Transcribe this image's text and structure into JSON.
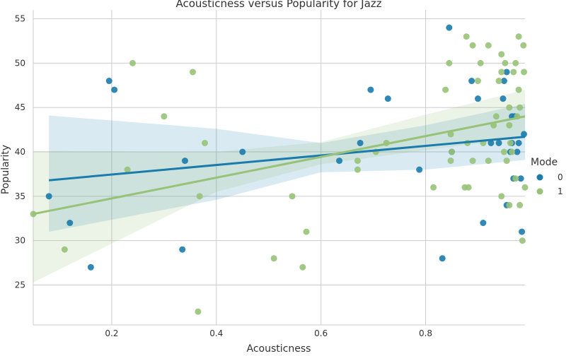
{
  "chart_data": {
    "type": "scatter",
    "title": "Acousticness versus Popularity for Jazz",
    "xlabel": "Acousticness",
    "ylabel": "Popularity",
    "xlim": [
      0.05,
      0.99
    ],
    "ylim": [
      20.5,
      56
    ],
    "xticks": [
      0.2,
      0.4,
      0.6,
      0.8
    ],
    "xtick_labels": [
      "0.2",
      "0.4",
      "0.6",
      "0.8"
    ],
    "yticks": [
      25,
      30,
      35,
      40,
      45,
      50,
      55
    ],
    "ytick_labels": [
      "25",
      "30",
      "35",
      "40",
      "45",
      "50",
      "55"
    ],
    "grid": true,
    "legend": {
      "title": "Mode",
      "placement": "right",
      "entries": [
        "0",
        "1"
      ]
    },
    "series": [
      {
        "name": "0",
        "color": "#1a7bad",
        "points": [
          [
            0.08,
            35
          ],
          [
            0.12,
            32
          ],
          [
            0.16,
            27
          ],
          [
            0.195,
            48
          ],
          [
            0.205,
            47
          ],
          [
            0.335,
            29
          ],
          [
            0.34,
            39
          ],
          [
            0.45,
            40
          ],
          [
            0.635,
            39
          ],
          [
            0.675,
            41
          ],
          [
            0.695,
            47
          ],
          [
            0.728,
            46
          ],
          [
            0.788,
            38
          ],
          [
            0.832,
            28
          ],
          [
            0.845,
            54
          ],
          [
            0.85,
            40
          ],
          [
            0.888,
            48
          ],
          [
            0.9,
            46
          ],
          [
            0.91,
            32
          ],
          [
            0.925,
            41
          ],
          [
            0.94,
            41
          ],
          [
            0.948,
            46
          ],
          [
            0.95,
            48
          ],
          [
            0.955,
            49
          ],
          [
            0.955,
            34
          ],
          [
            0.962,
            40
          ],
          [
            0.965,
            41
          ],
          [
            0.965,
            44
          ],
          [
            0.968,
            37
          ],
          [
            0.97,
            44
          ],
          [
            0.975,
            40
          ],
          [
            0.978,
            41
          ],
          [
            0.982,
            37
          ],
          [
            0.984,
            31
          ],
          [
            0.988,
            42
          ]
        ],
        "fit": {
          "x": [
            0.08,
            0.99
          ],
          "y": [
            36.8,
            41.7
          ]
        },
        "ci_upper": [
          [
            0.08,
            44.1
          ],
          [
            0.4,
            42.6
          ],
          [
            0.6,
            41.0
          ],
          [
            0.8,
            43.0
          ],
          [
            0.99,
            45.4
          ]
        ],
        "ci_lower": [
          [
            0.08,
            31.0
          ],
          [
            0.4,
            34.6
          ],
          [
            0.6,
            37.7
          ],
          [
            0.8,
            38.0
          ],
          [
            0.99,
            39.1
          ]
        ]
      },
      {
        "name": "1",
        "color": "#97c278",
        "points": [
          [
            0.05,
            33
          ],
          [
            0.11,
            29
          ],
          [
            0.23,
            38
          ],
          [
            0.24,
            50
          ],
          [
            0.3,
            44
          ],
          [
            0.355,
            49
          ],
          [
            0.365,
            22
          ],
          [
            0.368,
            35
          ],
          [
            0.378,
            41
          ],
          [
            0.51,
            28
          ],
          [
            0.545,
            35
          ],
          [
            0.565,
            27
          ],
          [
            0.572,
            31
          ],
          [
            0.67,
            39
          ],
          [
            0.67,
            38
          ],
          [
            0.705,
            40
          ],
          [
            0.725,
            41
          ],
          [
            0.815,
            36
          ],
          [
            0.838,
            47
          ],
          [
            0.845,
            50
          ],
          [
            0.848,
            39
          ],
          [
            0.848,
            42
          ],
          [
            0.85,
            40
          ],
          [
            0.875,
            36
          ],
          [
            0.878,
            53
          ],
          [
            0.88,
            41
          ],
          [
            0.882,
            36
          ],
          [
            0.89,
            52
          ],
          [
            0.89,
            39
          ],
          [
            0.9,
            48
          ],
          [
            0.905,
            50
          ],
          [
            0.91,
            41
          ],
          [
            0.92,
            39
          ],
          [
            0.92,
            52
          ],
          [
            0.93,
            43
          ],
          [
            0.935,
            44
          ],
          [
            0.94,
            48
          ],
          [
            0.945,
            49
          ],
          [
            0.945,
            35
          ],
          [
            0.945,
            51
          ],
          [
            0.95,
            40
          ],
          [
            0.952,
            50
          ],
          [
            0.955,
            39
          ],
          [
            0.96,
            45
          ],
          [
            0.96,
            34
          ],
          [
            0.962,
            41
          ],
          [
            0.965,
            40
          ],
          [
            0.968,
            49
          ],
          [
            0.972,
            37
          ],
          [
            0.972,
            50
          ],
          [
            0.975,
            44
          ],
          [
            0.978,
            53
          ],
          [
            0.978,
            47
          ],
          [
            0.98,
            45
          ],
          [
            0.98,
            34
          ],
          [
            0.985,
            30
          ],
          [
            0.987,
            52
          ],
          [
            0.988,
            49
          ],
          [
            0.99,
            36
          ],
          [
            0.96,
            43
          ]
        ],
        "fit": {
          "x": [
            0.05,
            0.99
          ],
          "y": [
            33.0,
            44.0
          ]
        },
        "ci_upper": [
          [
            0.05,
            40.1
          ],
          [
            0.4,
            40.0
          ],
          [
            0.6,
            41.1
          ],
          [
            0.8,
            44.2
          ],
          [
            0.99,
            47.0
          ]
        ],
        "ci_lower": [
          [
            0.05,
            25.3
          ],
          [
            0.4,
            35.5
          ],
          [
            0.6,
            38.6
          ],
          [
            0.8,
            40.2
          ],
          [
            0.99,
            41.6
          ]
        ]
      }
    ]
  }
}
